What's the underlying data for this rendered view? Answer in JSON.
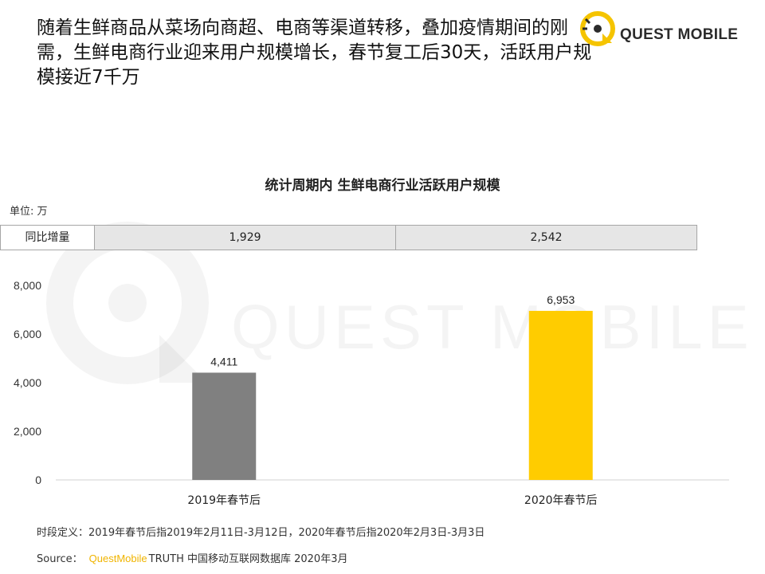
{
  "headline": "随着生鲜商品从菜场向商超、电商等渠道转移，叠加疫情期间的刚需，生鲜电商行业迎来用户规模增长，春节复工后30天，活跃用户规模接近7千万",
  "logo": {
    "text": "QUEST MOBILE",
    "icon": "quest-mobile-logo-icon",
    "accent_color": "#f5c400"
  },
  "watermark": {
    "text": "QUEST MOBILE"
  },
  "yoy_row": {
    "header": "同比增量",
    "values": [
      "1,929",
      "2,542"
    ]
  },
  "chart_data": {
    "type": "bar",
    "title": "统计周期内 生鲜电商行业活跃用户规模",
    "unit_label": "单位: 万",
    "categories": [
      "2019年春节后",
      "2020年春节后"
    ],
    "values": [
      4411,
      6953
    ],
    "value_labels": [
      "4,411",
      "6,953"
    ],
    "bar_colors": [
      "#808080",
      "#ffcc00"
    ],
    "ylim": [
      0,
      8000
    ],
    "yticks": [
      0,
      2000,
      4000,
      6000,
      8000
    ],
    "ytick_labels": [
      "0",
      "2,000",
      "4,000",
      "6,000",
      "8,000"
    ],
    "grid": false,
    "legend": "none"
  },
  "footnote": "时段定义：2019年春节后指2019年2月11日-3月12日，2020年春节后指2020年2月3日-3月3日",
  "source": {
    "label": "Source：",
    "brand": "QuestMobile",
    "rest": "TRUTH 中国移动互联网数据库 2020年3月"
  }
}
